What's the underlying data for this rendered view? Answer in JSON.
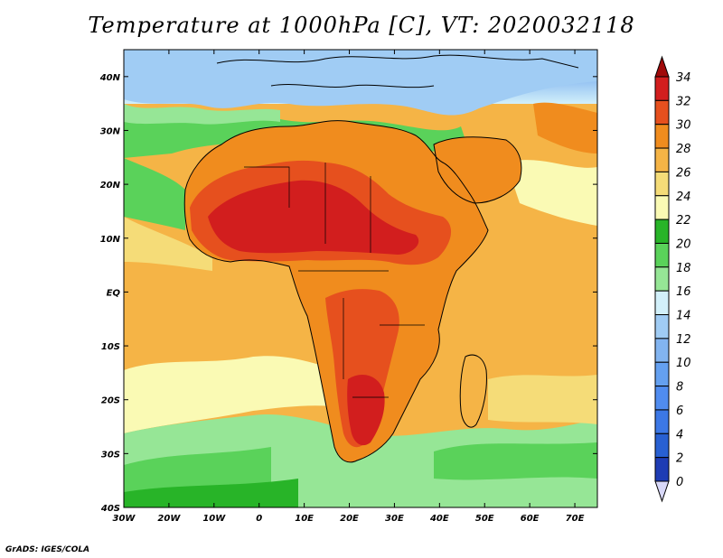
{
  "title": "Temperature at 1000hPa [C], VT: 2020032118",
  "credit": "GrADS: IGES/COLA",
  "map": {
    "region": "Africa",
    "projection": "latlon",
    "lon_range": [
      -30,
      75
    ],
    "lat_range": [
      -40,
      45
    ],
    "variable": "Temperature at 1000hPa",
    "units": "C",
    "valid_time": "2020032118",
    "x_ticks": [
      "30W",
      "20W",
      "10W",
      "0",
      "10E",
      "20E",
      "30E",
      "40E",
      "50E",
      "60E",
      "70E"
    ],
    "y_ticks": [
      "40N",
      "30N",
      "20N",
      "10N",
      "EQ",
      "10S",
      "20S",
      "30S",
      "40S"
    ]
  },
  "colorbar": {
    "levels": [
      0,
      2,
      4,
      6,
      8,
      10,
      12,
      14,
      16,
      18,
      20,
      22,
      24,
      26,
      28,
      30,
      32,
      34
    ],
    "colors": [
      "#0a0a78",
      "#1e3cb4",
      "#2860d2",
      "#3c78e6",
      "#508cf0",
      "#64a0f0",
      "#82b4f0",
      "#a0ccf4",
      "#d2f0fa",
      "#96e696",
      "#5ad25a",
      "#28b428",
      "#fafab4",
      "#f5dc78",
      "#f5b446",
      "#f08c1e",
      "#e6501e",
      "#d21e1e",
      "#a00a0a"
    ],
    "labels": [
      "34",
      "32",
      "30",
      "28",
      "26",
      "24",
      "22",
      "20",
      "18",
      "16",
      "14",
      "12",
      "10",
      "8",
      "6",
      "4",
      "2",
      "0"
    ]
  }
}
